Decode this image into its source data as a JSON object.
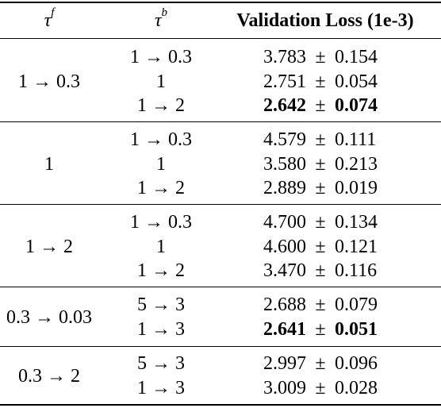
{
  "header": {
    "tau_f_symbol": "τ",
    "tau_f_sup": "f",
    "tau_b_symbol": "τ",
    "tau_b_sup": "b",
    "loss_label": "Validation Loss (1e-3)"
  },
  "pm_symbol": "±",
  "groups": [
    {
      "tau_f": "1 → 0.3",
      "rows": [
        {
          "tau_b": "1 → 0.3",
          "mean": "3.783",
          "sd": "0.154",
          "bold": false
        },
        {
          "tau_b": "1",
          "mean": "2.751",
          "sd": "0.054",
          "bold": false
        },
        {
          "tau_b": "1 → 2",
          "mean": "2.642",
          "sd": "0.074",
          "bold": true
        }
      ]
    },
    {
      "tau_f": "1",
      "rows": [
        {
          "tau_b": "1 → 0.3",
          "mean": "4.579",
          "sd": "0.111",
          "bold": false
        },
        {
          "tau_b": "1",
          "mean": "3.580",
          "sd": "0.213",
          "bold": false
        },
        {
          "tau_b": "1 → 2",
          "mean": "2.889",
          "sd": "0.019",
          "bold": false
        }
      ]
    },
    {
      "tau_f": "1 → 2",
      "rows": [
        {
          "tau_b": "1 → 0.3",
          "mean": "4.700",
          "sd": "0.134",
          "bold": false
        },
        {
          "tau_b": "1",
          "mean": "4.600",
          "sd": "0.121",
          "bold": false
        },
        {
          "tau_b": "1 → 2",
          "mean": "3.470",
          "sd": "0.116",
          "bold": false
        }
      ]
    },
    {
      "tau_f": "0.3 → 0.03",
      "rows": [
        {
          "tau_b": "5 → 3",
          "mean": "2.688",
          "sd": "0.079",
          "bold": false
        },
        {
          "tau_b": "1 → 3",
          "mean": "2.641",
          "sd": "0.051",
          "bold": true
        }
      ]
    },
    {
      "tau_f": "0.3 → 2",
      "rows": [
        {
          "tau_b": "5 → 3",
          "mean": "2.997",
          "sd": "0.096",
          "bold": false
        },
        {
          "tau_b": "1 → 3",
          "mean": "3.009",
          "sd": "0.028",
          "bold": false
        }
      ]
    }
  ]
}
